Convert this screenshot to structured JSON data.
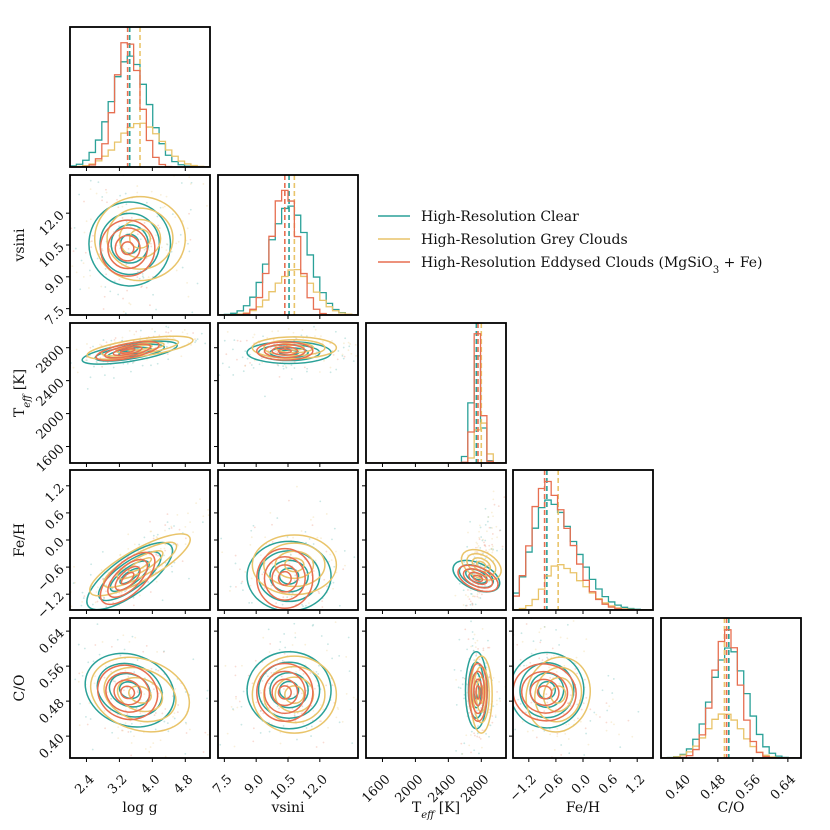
{
  "chart_data": {
    "type": "corner",
    "parameters": [
      {
        "key": "logg",
        "label": "log g",
        "range": [
          2.0,
          5.4
        ],
        "ticks": [
          "2.4",
          "3.2",
          "4.0",
          "4.8"
        ]
      },
      {
        "key": "vsini",
        "label": "vsini",
        "range": [
          7.2,
          13.8
        ],
        "ticks": [
          "7.5",
          "9.0",
          "10.5",
          "12.0"
        ]
      },
      {
        "key": "teff",
        "label": "T",
        "label_sub": "eff",
        "label_unit": " [K]",
        "range": [
          1400,
          3100
        ],
        "ticks": [
          "1600",
          "2000",
          "2400",
          "2800"
        ]
      },
      {
        "key": "feh",
        "label": "Fe/H",
        "range": [
          -1.55,
          1.55
        ],
        "ticks": [
          "-1.2",
          "-0.6",
          "0.0",
          "0.6",
          "1.2"
        ]
      },
      {
        "key": "co",
        "label": "C/O",
        "range": [
          0.35,
          0.67
        ],
        "ticks": [
          "0.40",
          "0.48",
          "0.56",
          "0.64"
        ]
      }
    ],
    "series": [
      {
        "name": "High-Resolution Clear",
        "color": "#2aa198",
        "medians": {
          "logg": 3.45,
          "vsini": 10.55,
          "teff": 2740,
          "feh": -0.8,
          "co": 0.505
        },
        "sigmas": {
          "logg": 0.45,
          "vsini": 0.9,
          "teff": 60,
          "feh": 0.35,
          "co": 0.04
        }
      },
      {
        "name": "High-Resolution Grey Clouds",
        "color": "#e9c46a",
        "medians": {
          "logg": 3.7,
          "vsini": 10.8,
          "teff": 2800,
          "feh": -0.55,
          "co": 0.495
        },
        "sigmas": {
          "logg": 0.5,
          "vsini": 0.9,
          "teff": 60,
          "feh": 0.3,
          "co": 0.04
        }
      },
      {
        "name": "High-Resolution Eddysed Clouds (MgSiO",
        "name_sub": "3",
        "name_tail": " + Fe)",
        "color": "#e76f51",
        "medians": {
          "logg": 3.4,
          "vsini": 10.35,
          "teff": 2760,
          "feh": -0.85,
          "co": 0.5
        },
        "sigmas": {
          "logg": 0.3,
          "vsini": 0.6,
          "teff": 50,
          "feh": 0.3,
          "co": 0.03
        }
      }
    ]
  }
}
